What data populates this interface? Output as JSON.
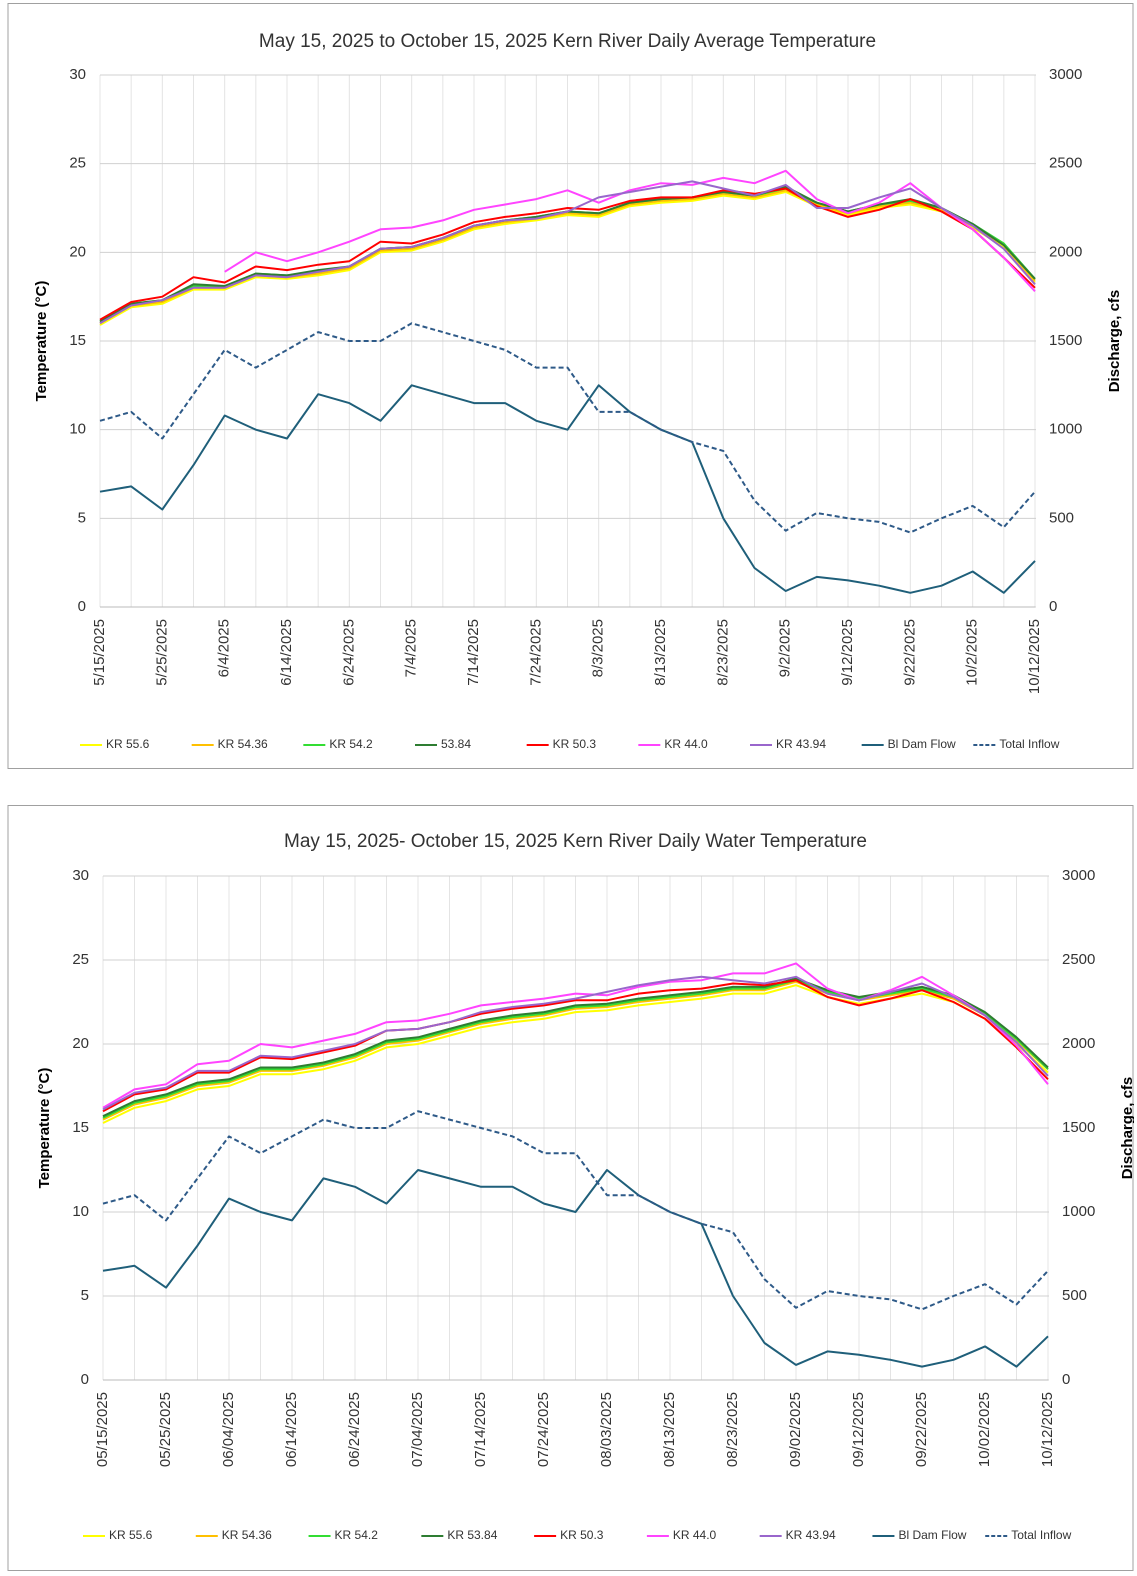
{
  "chart_data": [
    {
      "type": "line",
      "title": "May 15, 2025 to October 15, 2025 Kern River Daily Average Temperature",
      "y_label": "Temperature (°C)",
      "y2_label": "Discharge, cfs",
      "categories": [
        "5/15/2025",
        null,
        "5/25/2025",
        null,
        "6/4/2025",
        null,
        "6/14/2025",
        null,
        "6/24/2025",
        null,
        "7/4/2025",
        null,
        "7/14/2025",
        null,
        "7/24/2025",
        null,
        "8/3/2025",
        null,
        "8/13/2025",
        null,
        "8/23/2025",
        null,
        "9/2/2025",
        null,
        "9/12/2025",
        null,
        "9/22/2025",
        null,
        "10/2/2025",
        null,
        "10/12/2025"
      ],
      "ylim": [
        0,
        30
      ],
      "yticks": [
        0,
        5,
        10,
        15,
        20,
        25,
        30
      ],
      "y2lim": [
        0,
        3000
      ],
      "y2ticks": [
        0,
        500,
        1000,
        1500,
        2000,
        2500,
        3000
      ],
      "grid": true,
      "legend": "bottom",
      "series": [
        {
          "name": "KR 55.6",
          "color": "#ffff00",
          "values": [
            15.9,
            16.9,
            17.1,
            17.9,
            17.9,
            18.6,
            18.5,
            18.7,
            19.0,
            20.0,
            20.1,
            20.6,
            21.3,
            21.6,
            21.8,
            22.1,
            22.0,
            22.6,
            22.8,
            22.9,
            23.2,
            23.0,
            23.4,
            22.6,
            22.1,
            22.5,
            22.7,
            22.3,
            21.4,
            20.3,
            18.3
          ]
        },
        {
          "name": "KR 54.36",
          "color": "#ffc000",
          "values": [
            16.0,
            17.0,
            17.2,
            18.0,
            18.0,
            18.7,
            18.6,
            18.8,
            19.1,
            20.1,
            20.2,
            20.7,
            21.4,
            21.7,
            21.9,
            22.2,
            22.1,
            22.7,
            22.9,
            23.0,
            23.3,
            23.1,
            23.5,
            22.7,
            22.2,
            22.6,
            22.8,
            22.4,
            21.5,
            20.4,
            18.4
          ]
        },
        {
          "name": "KR 54.2",
          "color": "#33dd33",
          "values": [
            16.1,
            17.1,
            17.3,
            18.1,
            18.1,
            18.8,
            18.7,
            18.9,
            19.2,
            20.2,
            20.3,
            20.8,
            21.5,
            21.8,
            22.0,
            22.3,
            22.2,
            22.8,
            23.0,
            23.1,
            23.4,
            23.2,
            23.6,
            22.8,
            22.3,
            22.7,
            22.9,
            22.5,
            21.6,
            20.5,
            18.5
          ]
        },
        {
          "name": "53.84",
          "color": "#2e7d32",
          "values": [
            16.1,
            17.1,
            17.3,
            18.2,
            18.1,
            18.8,
            18.7,
            19.0,
            19.2,
            20.2,
            20.3,
            20.8,
            21.5,
            21.8,
            22.0,
            22.3,
            22.2,
            22.8,
            23.0,
            23.1,
            23.4,
            23.2,
            23.7,
            22.8,
            22.3,
            22.7,
            23.0,
            22.5,
            21.6,
            20.4,
            18.5
          ]
        },
        {
          "name": "KR 50.3",
          "color": "#ff0000",
          "values": [
            16.2,
            17.2,
            17.5,
            18.6,
            18.3,
            19.2,
            19.0,
            19.3,
            19.5,
            20.6,
            20.5,
            21.0,
            21.7,
            22.0,
            22.2,
            22.5,
            22.4,
            22.9,
            23.1,
            23.1,
            23.5,
            23.3,
            23.6,
            22.6,
            22.0,
            22.4,
            23.0,
            22.3,
            21.3,
            19.7,
            18.0
          ]
        },
        {
          "name": "KR 44.0",
          "color": "#ff44ff",
          "values": [
            null,
            null,
            null,
            null,
            18.9,
            20.0,
            19.5,
            20.0,
            20.6,
            21.3,
            21.4,
            21.8,
            22.4,
            22.7,
            23.0,
            23.5,
            22.8,
            23.5,
            23.9,
            23.8,
            24.2,
            23.9,
            24.6,
            23.0,
            22.2,
            22.8,
            23.9,
            22.5,
            21.3,
            19.7,
            17.8
          ]
        },
        {
          "name": "KR 43.94",
          "color": "#9966cc",
          "values": [
            16.0,
            17.0,
            17.3,
            18.0,
            18.0,
            18.7,
            18.6,
            18.9,
            19.2,
            20.2,
            20.3,
            20.8,
            21.5,
            21.8,
            21.9,
            22.3,
            23.1,
            23.4,
            23.7,
            24.0,
            23.6,
            23.2,
            23.8,
            22.5,
            22.5,
            23.1,
            23.6,
            22.5,
            21.5,
            20.2,
            18.2
          ]
        },
        {
          "name": "Bl Dam Flow",
          "color": "#1f5f7a",
          "axis": "y2",
          "values": [
            650,
            680,
            550,
            800,
            1080,
            1000,
            950,
            1200,
            1150,
            1050,
            1250,
            1200,
            1150,
            1150,
            1050,
            1000,
            1250,
            1100,
            1000,
            930,
            500,
            220,
            90,
            170,
            150,
            120,
            80,
            120,
            200,
            80,
            260
          ]
        },
        {
          "name": "Total Inflow",
          "color": "#2e5a88",
          "axis": "y2",
          "dashed": true,
          "values": [
            1050,
            1100,
            950,
            1200,
            1450,
            1350,
            1450,
            1550,
            1500,
            1500,
            1600,
            1550,
            1500,
            1450,
            1350,
            1350,
            1100,
            1100,
            1000,
            930,
            880,
            600,
            430,
            530,
            500,
            480,
            420,
            500,
            570,
            450,
            650
          ]
        }
      ]
    },
    {
      "type": "line",
      "title": "May 15, 2025- October 15, 2025 Kern River Daily Water Temperature",
      "y_label": "Temperature (°C)",
      "y2_label": "Discharge, cfs",
      "categories": [
        "05/15/2025",
        null,
        "05/25/2025",
        null,
        "06/04/2025",
        null,
        "06/14/2025",
        null,
        "06/24/2025",
        null,
        "07/04/2025",
        null,
        "07/14/2025",
        null,
        "07/24/2025",
        null,
        "08/03/2025",
        null,
        "08/13/2025",
        null,
        "08/23/2025",
        null,
        "09/02/2025",
        null,
        "09/12/2025",
        null,
        "09/22/2025",
        null,
        "10/02/2025",
        null,
        "10/12/2025"
      ],
      "ylim": [
        0,
        30
      ],
      "yticks": [
        0,
        5,
        10,
        15,
        20,
        25,
        30
      ],
      "y2lim": [
        0,
        3000
      ],
      "y2ticks": [
        0,
        500,
        1000,
        1500,
        2000,
        2500,
        3000
      ],
      "grid": true,
      "legend": "bottom",
      "series": [
        {
          "name": "KR 55.6",
          "color": "#ffff00",
          "values": [
            15.3,
            16.2,
            16.6,
            17.3,
            17.5,
            18.2,
            18.2,
            18.5,
            19.0,
            19.8,
            20.0,
            20.5,
            21.0,
            21.3,
            21.5,
            21.9,
            22.0,
            22.3,
            22.5,
            22.7,
            23.0,
            23.0,
            23.5,
            22.8,
            22.4,
            22.7,
            23.0,
            22.5,
            21.5,
            20.0,
            18.3
          ]
        },
        {
          "name": "KR 54.36",
          "color": "#ffc000",
          "values": [
            15.5,
            16.4,
            16.8,
            17.5,
            17.7,
            18.4,
            18.4,
            18.7,
            19.2,
            20.0,
            20.2,
            20.7,
            21.2,
            21.5,
            21.7,
            22.1,
            22.2,
            22.5,
            22.7,
            22.9,
            23.2,
            23.2,
            23.7,
            23.0,
            22.6,
            22.9,
            23.2,
            22.7,
            21.7,
            20.2,
            18.5
          ]
        },
        {
          "name": "KR 54.2",
          "color": "#33dd33",
          "values": [
            15.6,
            16.5,
            16.9,
            17.6,
            17.8,
            18.5,
            18.5,
            18.8,
            19.3,
            20.1,
            20.3,
            20.8,
            21.3,
            21.6,
            21.8,
            22.2,
            22.3,
            22.6,
            22.8,
            23.0,
            23.3,
            23.3,
            23.8,
            23.1,
            22.7,
            23.0,
            23.3,
            22.8,
            21.8,
            20.3,
            18.5
          ]
        },
        {
          "name": "KR 53.84",
          "color": "#2e7d32",
          "values": [
            15.7,
            16.6,
            17.0,
            17.7,
            17.9,
            18.6,
            18.6,
            18.9,
            19.4,
            20.2,
            20.4,
            20.9,
            21.4,
            21.7,
            21.9,
            22.3,
            22.4,
            22.7,
            22.9,
            23.1,
            23.4,
            23.4,
            23.9,
            23.2,
            22.8,
            23.1,
            23.4,
            22.9,
            21.9,
            20.4,
            18.6
          ]
        },
        {
          "name": "KR 50.3",
          "color": "#ff0000",
          "values": [
            16.0,
            17.0,
            17.3,
            18.3,
            18.3,
            19.2,
            19.1,
            19.5,
            19.9,
            20.8,
            20.9,
            21.3,
            21.8,
            22.1,
            22.3,
            22.6,
            22.6,
            23.0,
            23.2,
            23.3,
            23.6,
            23.5,
            23.8,
            22.8,
            22.3,
            22.7,
            23.2,
            22.5,
            21.5,
            19.8,
            17.9
          ]
        },
        {
          "name": "KR 44.0",
          "color": "#ff44ff",
          "values": [
            16.2,
            17.3,
            17.6,
            18.8,
            19.0,
            20.0,
            19.8,
            20.2,
            20.6,
            21.3,
            21.4,
            21.8,
            22.3,
            22.5,
            22.7,
            23.0,
            22.9,
            23.4,
            23.7,
            23.8,
            24.2,
            24.2,
            24.8,
            23.3,
            22.6,
            23.2,
            24.0,
            22.9,
            21.7,
            19.9,
            17.6
          ]
        },
        {
          "name": "KR 43.94",
          "color": "#9966cc",
          "values": [
            16.1,
            17.1,
            17.4,
            18.4,
            18.4,
            19.3,
            19.2,
            19.6,
            20.0,
            20.8,
            20.9,
            21.3,
            21.9,
            22.2,
            22.4,
            22.7,
            23.1,
            23.5,
            23.8,
            24.0,
            23.8,
            23.6,
            24.0,
            23.0,
            22.6,
            23.1,
            23.6,
            22.8,
            21.7,
            20.1,
            18.1
          ]
        },
        {
          "name": "Bl Dam Flow",
          "color": "#1f5f7a",
          "axis": "y2",
          "values": [
            650,
            680,
            550,
            800,
            1080,
            1000,
            950,
            1200,
            1150,
            1050,
            1250,
            1200,
            1150,
            1150,
            1050,
            1000,
            1250,
            1100,
            1000,
            930,
            500,
            220,
            90,
            170,
            150,
            120,
            80,
            120,
            200,
            80,
            260
          ]
        },
        {
          "name": "Total Inflow",
          "color": "#2e5a88",
          "axis": "y2",
          "dashed": true,
          "values": [
            1050,
            1100,
            950,
            1200,
            1450,
            1350,
            1450,
            1550,
            1500,
            1500,
            1600,
            1550,
            1500,
            1450,
            1350,
            1350,
            1100,
            1100,
            1000,
            930,
            880,
            600,
            430,
            530,
            500,
            480,
            420,
            500,
            570,
            450,
            650
          ]
        }
      ]
    }
  ]
}
